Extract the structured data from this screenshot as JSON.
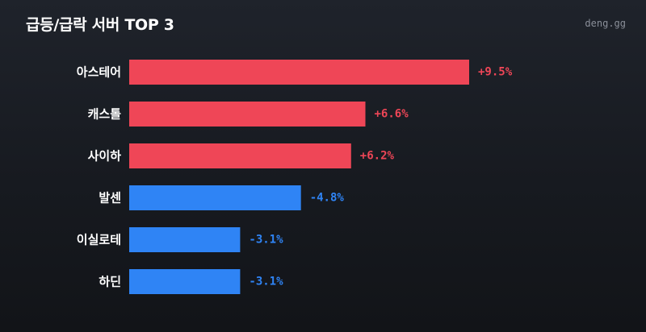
{
  "header": {
    "title": "급등/급락 서버 TOP 3",
    "brand": "deng.gg"
  },
  "colors": {
    "positive": "#ef4657",
    "negative": "#2f84f5"
  },
  "chart_data": {
    "type": "bar",
    "orientation": "horizontal",
    "title": "급등/급락 서버 TOP 3",
    "categories": [
      "아스테어",
      "캐스톨",
      "사이하",
      "발센",
      "이실로테",
      "하딘"
    ],
    "values": [
      9.5,
      6.6,
      6.2,
      -4.8,
      -3.1,
      -3.1
    ],
    "value_labels": [
      "+9.5%",
      "+6.6%",
      "+6.2%",
      "-4.8%",
      "-3.1%",
      "-3.1%"
    ],
    "unit": "%",
    "bar_length": "absolute value",
    "grid": false,
    "legend": "none"
  }
}
